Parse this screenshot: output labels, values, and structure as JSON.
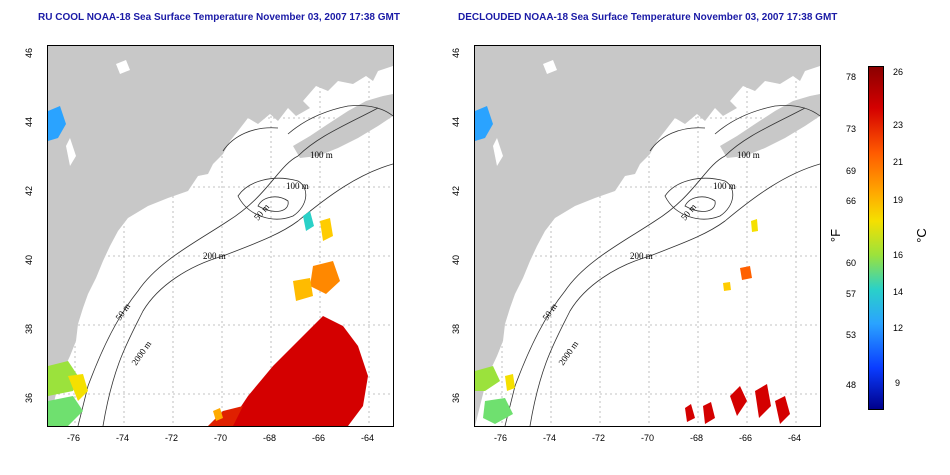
{
  "left_panel": {
    "title": "RU COOL NOAA-18 Sea Surface Temperature November 03, 2007 17:38 GMT",
    "contours": [
      "100 m",
      "100 m",
      "50 m",
      "200 m",
      "50 m",
      "2000 m"
    ]
  },
  "right_panel": {
    "title": "DECLOUDED NOAA-18 Sea Surface Temperature November 03, 2007 17:38 GMT",
    "contours": [
      "100 m",
      "100 m",
      "50 m",
      "200 m",
      "50 m",
      "2000 m"
    ]
  },
  "axes": {
    "x_ticks": [
      "-76",
      "-74",
      "-72",
      "-70",
      "-68",
      "-66",
      "-64"
    ],
    "y_ticks": [
      "46",
      "44",
      "42",
      "40",
      "38",
      "36"
    ]
  },
  "colorbar": {
    "fahrenheit_label": "°F",
    "celsius_label": "°C",
    "fahrenheit_ticks": [
      "78",
      "73",
      "69",
      "66",
      "60",
      "57",
      "53",
      "48"
    ],
    "celsius_ticks": [
      "26",
      "23",
      "21",
      "19",
      "16",
      "14",
      "12",
      "9"
    ],
    "colors": [
      "#8b0000",
      "#d40000",
      "#ff5a00",
      "#ffaa00",
      "#f5e000",
      "#9be23c",
      "#2ad1c8",
      "#2aa3ff",
      "#0a3cff",
      "#00008b"
    ]
  },
  "colors": {
    "land": "#c8c8c8",
    "title": "#1a1aa6",
    "grid": "#b0b0b0"
  }
}
